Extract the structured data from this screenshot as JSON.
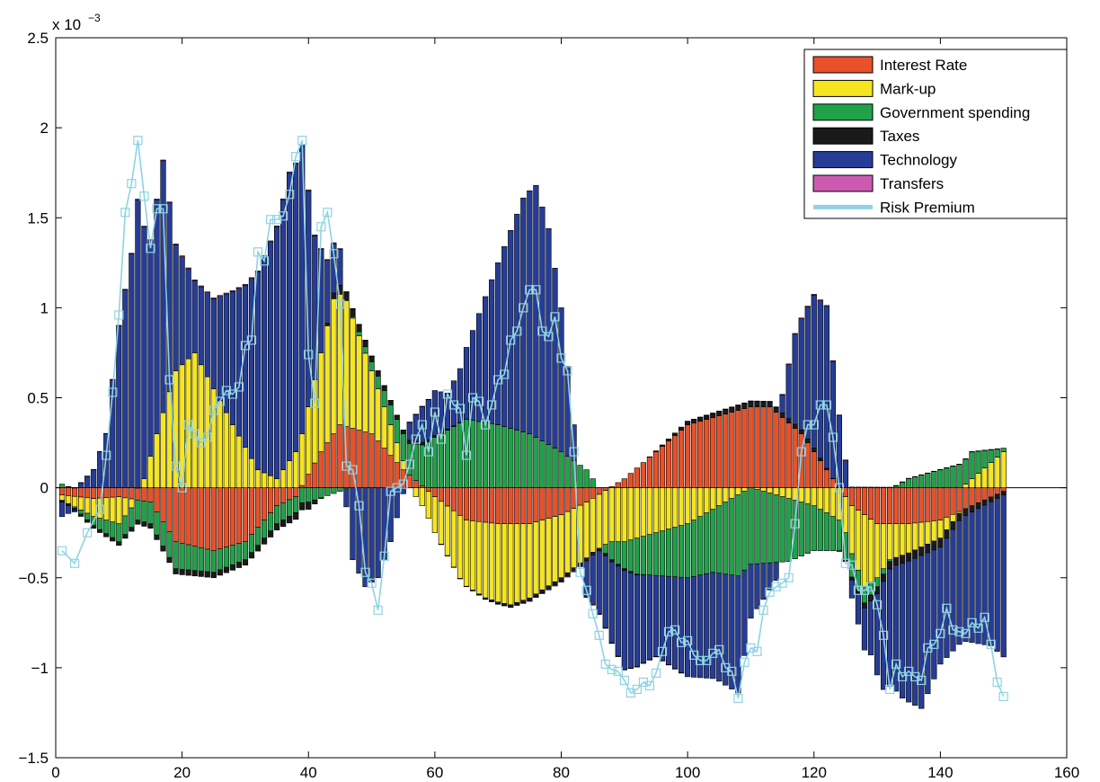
{
  "chart_data": {
    "type": "bar",
    "stacked": true,
    "title": "",
    "xlabel": "",
    "ylabel": "",
    "y_multiplier_label": "x 10",
    "y_multiplier_exponent": "−3",
    "xlim": [
      0,
      160
    ],
    "ylim": [
      -1.5,
      2.5
    ],
    "x_ticks": [
      0,
      20,
      40,
      60,
      80,
      100,
      120,
      140,
      160
    ],
    "x_tick_labels": [
      "0",
      "20",
      "40",
      "60",
      "80",
      "100",
      "120",
      "140",
      "160"
    ],
    "y_ticks": [
      -1.5,
      -1,
      -0.5,
      0,
      0.5,
      1,
      1.5,
      2,
      2.5
    ],
    "y_tick_labels": [
      "−1.5",
      "−1",
      "−0.5",
      "0",
      "0.5",
      "1",
      "1.5",
      "2",
      "2.5"
    ],
    "grid": false,
    "legend_position": "top-right",
    "x_start": 1,
    "x_end": 150,
    "series": [
      {
        "name": "Interest Rate",
        "color": "#E8512A",
        "knots": [
          [
            1,
            -0.04
          ],
          [
            6,
            -0.06
          ],
          [
            10,
            -0.05
          ],
          [
            15,
            -0.08
          ],
          [
            19,
            -0.3
          ],
          [
            25,
            -0.35
          ],
          [
            30,
            -0.3
          ],
          [
            35,
            -0.1
          ],
          [
            38,
            -0.05
          ],
          [
            42,
            0.2
          ],
          [
            45,
            0.35
          ],
          [
            50,
            0.3
          ],
          [
            55,
            0.1
          ],
          [
            60,
            -0.05
          ],
          [
            65,
            -0.18
          ],
          [
            70,
            -0.2
          ],
          [
            75,
            -0.2
          ],
          [
            80,
            -0.15
          ],
          [
            84,
            -0.08
          ],
          [
            90,
            0.05
          ],
          [
            95,
            0.2
          ],
          [
            100,
            0.35
          ],
          [
            105,
            0.4
          ],
          [
            110,
            0.45
          ],
          [
            113,
            0.45
          ],
          [
            118,
            0.3
          ],
          [
            123,
            0.05
          ],
          [
            126,
            -0.1
          ],
          [
            130,
            -0.2
          ],
          [
            135,
            -0.2
          ],
          [
            140,
            -0.18
          ],
          [
            145,
            -0.1
          ],
          [
            150,
            -0.02
          ]
        ]
      },
      {
        "name": "Mark-up",
        "color": "#F5E620",
        "knots": [
          [
            1,
            -0.03
          ],
          [
            6,
            -0.1
          ],
          [
            10,
            -0.15
          ],
          [
            14,
            0.05
          ],
          [
            16,
            0.3
          ],
          [
            19,
            0.65
          ],
          [
            22,
            0.75
          ],
          [
            25,
            0.55
          ],
          [
            28,
            0.35
          ],
          [
            32,
            0.1
          ],
          [
            35,
            0.05
          ],
          [
            38,
            0.2
          ],
          [
            42,
            0.55
          ],
          [
            44,
            0.75
          ],
          [
            46,
            0.7
          ],
          [
            50,
            0.35
          ],
          [
            55,
            0.05
          ],
          [
            60,
            -0.2
          ],
          [
            64,
            -0.35
          ],
          [
            68,
            -0.42
          ],
          [
            72,
            -0.45
          ],
          [
            76,
            -0.4
          ],
          [
            80,
            -0.35
          ],
          [
            85,
            -0.3
          ],
          [
            90,
            -0.3
          ],
          [
            95,
            -0.25
          ],
          [
            100,
            -0.2
          ],
          [
            105,
            -0.1
          ],
          [
            110,
            0.0
          ],
          [
            115,
            -0.05
          ],
          [
            120,
            -0.1
          ],
          [
            125,
            -0.2
          ],
          [
            128,
            -0.4
          ],
          [
            132,
            -0.2
          ],
          [
            136,
            -0.15
          ],
          [
            140,
            -0.1
          ],
          [
            145,
            0.05
          ],
          [
            150,
            0.2
          ]
        ]
      },
      {
        "name": "Government spending",
        "color": "#21A249",
        "knots": [
          [
            1,
            0.02
          ],
          [
            6,
            -0.05
          ],
          [
            10,
            -0.1
          ],
          [
            15,
            -0.12
          ],
          [
            19,
            -0.15
          ],
          [
            25,
            -0.12
          ],
          [
            30,
            -0.1
          ],
          [
            35,
            -0.1
          ],
          [
            40,
            -0.08
          ],
          [
            45,
            -0.02
          ],
          [
            50,
            0.05
          ],
          [
            55,
            0.15
          ],
          [
            60,
            0.28
          ],
          [
            65,
            0.38
          ],
          [
            70,
            0.35
          ],
          [
            75,
            0.3
          ],
          [
            80,
            0.2
          ],
          [
            84,
            0.1
          ],
          [
            88,
            -0.1
          ],
          [
            92,
            -0.2
          ],
          [
            96,
            -0.25
          ],
          [
            100,
            -0.3
          ],
          [
            104,
            -0.35
          ],
          [
            108,
            -0.45
          ],
          [
            112,
            -0.4
          ],
          [
            116,
            -0.35
          ],
          [
            120,
            -0.25
          ],
          [
            125,
            -0.15
          ],
          [
            130,
            -0.05
          ],
          [
            135,
            0.05
          ],
          [
            140,
            0.1
          ],
          [
            145,
            0.15
          ],
          [
            150,
            0.02
          ]
        ]
      },
      {
        "name": "Taxes",
        "color": "#1A1A1A",
        "knots": [
          [
            1,
            -0.01
          ],
          [
            10,
            -0.02
          ],
          [
            20,
            -0.03
          ],
          [
            30,
            -0.03
          ],
          [
            40,
            -0.04
          ],
          [
            45,
            0.05
          ],
          [
            50,
            0.03
          ],
          [
            60,
            0.01
          ],
          [
            70,
            -0.01
          ],
          [
            80,
            -0.02
          ],
          [
            90,
            -0.01
          ],
          [
            100,
            0.02
          ],
          [
            110,
            0.03
          ],
          [
            120,
            0.02
          ],
          [
            130,
            -0.04
          ],
          [
            140,
            -0.05
          ],
          [
            150,
            -0.02
          ]
        ]
      },
      {
        "name": "Technology",
        "color": "#263D97",
        "knots": [
          [
            1,
            -0.08
          ],
          [
            6,
            0.1
          ],
          [
            8,
            0.3
          ],
          [
            10,
            0.9
          ],
          [
            12,
            1.3
          ],
          [
            13,
            1.6
          ],
          [
            15,
            1.2
          ],
          [
            17,
            1.4
          ],
          [
            19,
            0.7
          ],
          [
            22,
            0.4
          ],
          [
            25,
            0.5
          ],
          [
            30,
            0.9
          ],
          [
            33,
            1.2
          ],
          [
            37,
            1.6
          ],
          [
            39,
            1.6
          ],
          [
            41,
            0.8
          ],
          [
            43,
            0.35
          ],
          [
            45,
            0.2
          ],
          [
            47,
            -0.4
          ],
          [
            49,
            -0.55
          ],
          [
            51,
            -0.5
          ],
          [
            53,
            -0.3
          ],
          [
            56,
            0.1
          ],
          [
            58,
            0.2
          ],
          [
            60,
            0.25
          ],
          [
            62,
            0.2
          ],
          [
            64,
            0.3
          ],
          [
            66,
            0.5
          ],
          [
            70,
            0.9
          ],
          [
            74,
            1.3
          ],
          [
            76,
            1.4
          ],
          [
            78,
            1.2
          ],
          [
            80,
            0.8
          ],
          [
            82,
            0.2
          ],
          [
            84,
            -0.2
          ],
          [
            86,
            -0.35
          ],
          [
            90,
            -0.55
          ],
          [
            95,
            -0.45
          ],
          [
            100,
            -0.55
          ],
          [
            105,
            -0.6
          ],
          [
            108,
            -0.65
          ],
          [
            110,
            -0.3
          ],
          [
            114,
            -0.1
          ],
          [
            117,
            0.5
          ],
          [
            120,
            0.85
          ],
          [
            122,
            0.9
          ],
          [
            124,
            0.4
          ],
          [
            126,
            -0.1
          ],
          [
            129,
            -0.3
          ],
          [
            131,
            -0.6
          ],
          [
            134,
            -0.75
          ],
          [
            137,
            -0.85
          ],
          [
            140,
            -0.65
          ],
          [
            144,
            -0.7
          ],
          [
            148,
            -0.8
          ],
          [
            150,
            -0.9
          ]
        ]
      },
      {
        "name": "Transfers",
        "color": "#CC5BB0",
        "knots": [
          [
            1,
            0.0
          ],
          [
            20,
            0.005
          ],
          [
            40,
            0.005
          ],
          [
            60,
            0.0
          ],
          [
            80,
            -0.005
          ],
          [
            100,
            0.0
          ],
          [
            120,
            0.005
          ],
          [
            150,
            0.0
          ]
        ]
      }
    ],
    "line_series": {
      "name": "Risk Premium",
      "color": "#8FD3E3",
      "knots": [
        [
          1,
          -0.35
        ],
        [
          3,
          -0.42
        ],
        [
          5,
          -0.25
        ],
        [
          7,
          -0.12
        ],
        [
          8,
          0.18
        ],
        [
          9,
          0.53
        ],
        [
          10,
          0.96
        ],
        [
          11,
          1.53
        ],
        [
          12,
          1.69
        ],
        [
          13,
          1.93
        ],
        [
          14,
          1.62
        ],
        [
          15,
          1.33
        ],
        [
          16,
          1.55
        ],
        [
          17,
          1.55
        ],
        [
          18,
          0.6
        ],
        [
          19,
          0.12
        ],
        [
          20,
          0.0
        ],
        [
          21,
          0.35
        ],
        [
          22,
          0.3
        ],
        [
          23,
          0.25
        ],
        [
          24,
          0.28
        ],
        [
          25,
          0.43
        ],
        [
          26,
          0.48
        ],
        [
          27,
          0.54
        ],
        [
          28,
          0.52
        ],
        [
          29,
          0.56
        ],
        [
          30,
          0.79
        ],
        [
          31,
          0.82
        ],
        [
          32,
          1.31
        ],
        [
          33,
          1.26
        ],
        [
          34,
          1.49
        ],
        [
          35,
          1.49
        ],
        [
          36,
          1.51
        ],
        [
          37,
          1.63
        ],
        [
          38,
          1.84
        ],
        [
          39,
          1.93
        ],
        [
          40,
          0.74
        ],
        [
          41,
          0.47
        ],
        [
          42,
          1.45
        ],
        [
          43,
          1.53
        ],
        [
          44,
          1.3
        ],
        [
          45,
          1.02
        ],
        [
          46,
          0.12
        ],
        [
          47,
          0.1
        ],
        [
          48,
          -0.1
        ],
        [
          49,
          -0.47
        ],
        [
          50,
          -0.53
        ],
        [
          51,
          -0.68
        ],
        [
          52,
          -0.38
        ],
        [
          53,
          -0.02
        ],
        [
          54,
          0.0
        ],
        [
          55,
          0.02
        ],
        [
          56,
          0.13
        ],
        [
          57,
          0.27
        ],
        [
          58,
          0.35
        ],
        [
          59,
          0.2
        ],
        [
          60,
          0.42
        ],
        [
          61,
          0.27
        ],
        [
          62,
          0.52
        ],
        [
          63,
          0.46
        ],
        [
          64,
          0.44
        ],
        [
          65,
          0.18
        ],
        [
          66,
          0.5
        ],
        [
          67,
          0.48
        ],
        [
          68,
          0.35
        ],
        [
          69,
          0.46
        ],
        [
          70,
          0.6
        ],
        [
          71,
          0.63
        ],
        [
          72,
          0.82
        ],
        [
          73,
          0.87
        ],
        [
          74,
          1.0
        ],
        [
          75,
          1.1
        ],
        [
          76,
          1.1
        ],
        [
          77,
          0.87
        ],
        [
          78,
          0.84
        ],
        [
          79,
          0.95
        ],
        [
          80,
          0.72
        ],
        [
          81,
          0.65
        ],
        [
          82,
          0.2
        ],
        [
          83,
          -0.47
        ],
        [
          84,
          -0.57
        ],
        [
          85,
          -0.7
        ],
        [
          86,
          -0.82
        ],
        [
          87,
          -0.98
        ],
        [
          88,
          -1.01
        ],
        [
          89,
          -1.02
        ],
        [
          90,
          -1.07
        ],
        [
          91,
          -1.14
        ],
        [
          92,
          -1.12
        ],
        [
          93,
          -1.08
        ],
        [
          94,
          -1.1
        ],
        [
          95,
          -1.03
        ],
        [
          96,
          -0.91
        ],
        [
          97,
          -0.8
        ],
        [
          98,
          -0.79
        ],
        [
          99,
          -0.86
        ],
        [
          100,
          -0.85
        ],
        [
          101,
          -0.93
        ],
        [
          102,
          -0.96
        ],
        [
          103,
          -0.96
        ],
        [
          104,
          -0.92
        ],
        [
          105,
          -0.9
        ],
        [
          106,
          -1.0
        ],
        [
          107,
          -1.02
        ],
        [
          108,
          -1.17
        ],
        [
          109,
          -0.97
        ],
        [
          110,
          -0.89
        ],
        [
          111,
          -0.91
        ],
        [
          112,
          -0.68
        ],
        [
          113,
          -0.58
        ],
        [
          114,
          -0.55
        ],
        [
          115,
          -0.53
        ],
        [
          116,
          -0.5
        ],
        [
          117,
          -0.2
        ],
        [
          118,
          0.2
        ],
        [
          119,
          0.35
        ],
        [
          120,
          0.35
        ],
        [
          121,
          0.46
        ],
        [
          122,
          0.46
        ],
        [
          123,
          0.28
        ],
        [
          124,
          0.0
        ],
        [
          125,
          -0.42
        ],
        [
          126,
          -0.43
        ],
        [
          127,
          -0.57
        ],
        [
          128,
          -0.57
        ],
        [
          129,
          -0.55
        ],
        [
          130,
          -0.65
        ],
        [
          131,
          -0.82
        ],
        [
          132,
          -1.12
        ],
        [
          133,
          -0.98
        ],
        [
          134,
          -1.05
        ],
        [
          135,
          -1.02
        ],
        [
          136,
          -1.05
        ],
        [
          137,
          -1.07
        ],
        [
          138,
          -0.89
        ],
        [
          139,
          -0.87
        ],
        [
          140,
          -0.81
        ],
        [
          141,
          -0.67
        ],
        [
          142,
          -0.79
        ],
        [
          143,
          -0.8
        ],
        [
          144,
          -0.81
        ],
        [
          145,
          -0.75
        ],
        [
          146,
          -0.78
        ],
        [
          147,
          -0.72
        ],
        [
          148,
          -0.87
        ],
        [
          149,
          -1.08
        ],
        [
          150,
          -1.16
        ]
      ]
    }
  }
}
